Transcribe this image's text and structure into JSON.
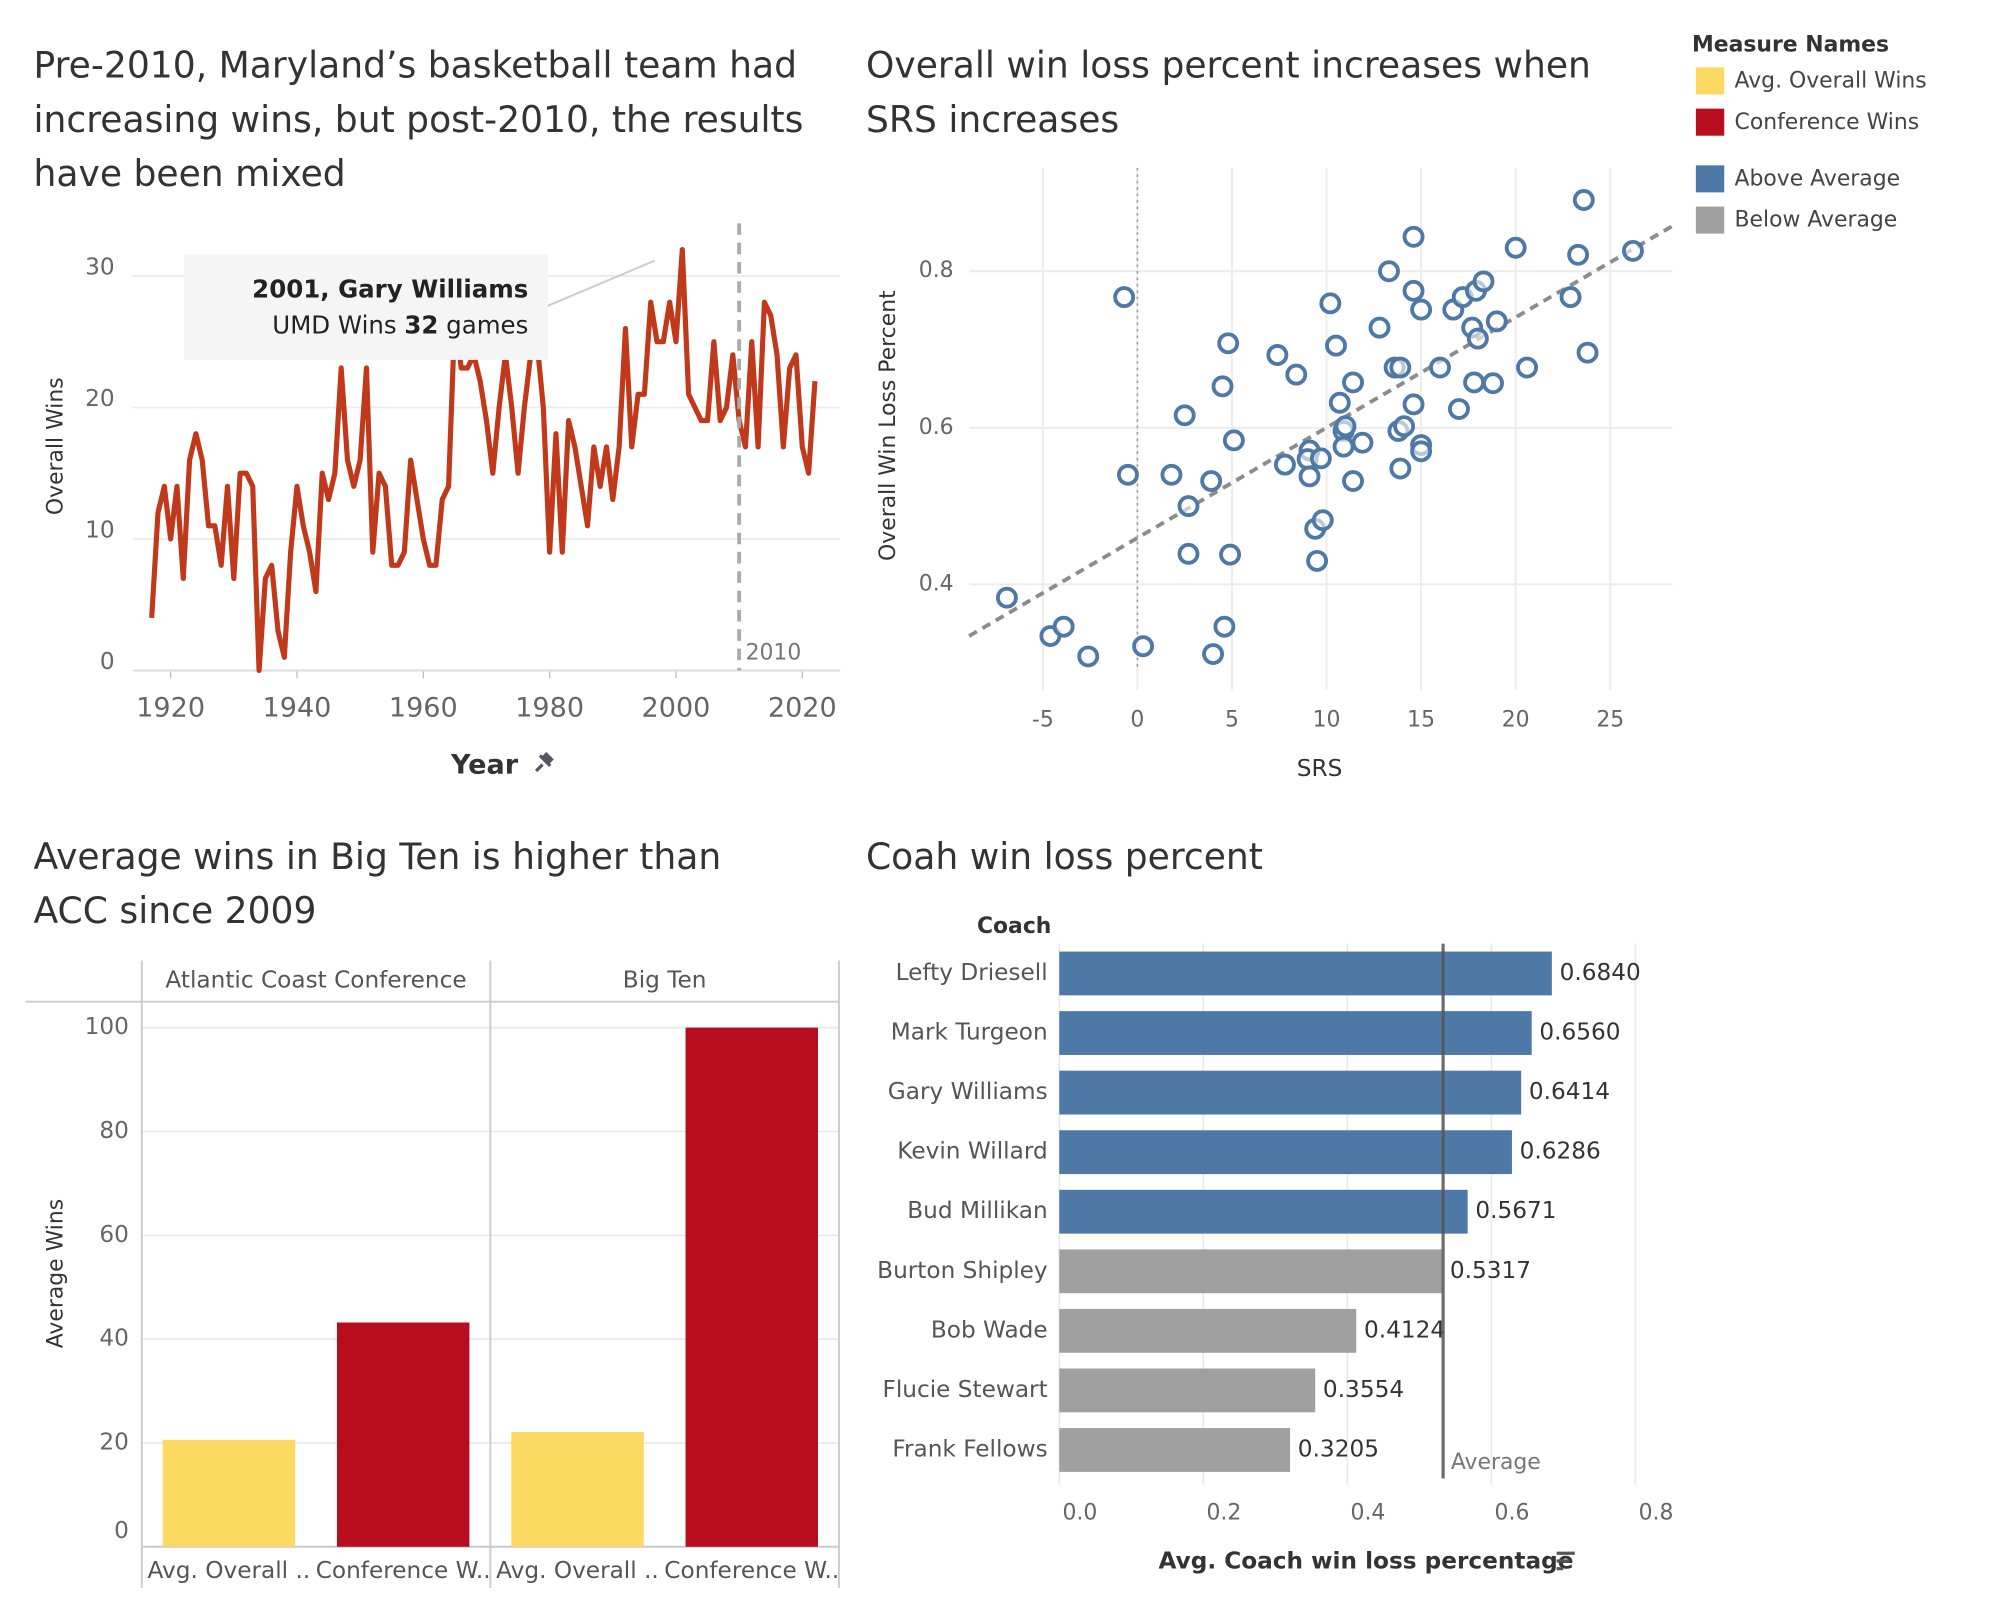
{
  "legend": {
    "title": "Measure Names",
    "items": [
      {
        "name": "Avg. Overall Wins",
        "color": "#fcd963"
      },
      {
        "name": "Conference Wins",
        "color": "#b80c1f"
      },
      {
        "name": "Above Average",
        "color": "#4e79a7"
      },
      {
        "name": "Below Average",
        "color": "#a0a0a0"
      }
    ]
  },
  "chart_data": [
    {
      "type": "line",
      "title": "Pre-2010, Maryland’s basketball team had increasing wins, but post-2010, the results have been mixed",
      "x_label": "Year",
      "y_label": "Overall Wins",
      "color": "#c0391b",
      "x": [
        1917,
        1918,
        1919,
        1920,
        1921,
        1922,
        1923,
        1924,
        1925,
        1926,
        1927,
        1928,
        1929,
        1930,
        1931,
        1932,
        1933,
        1934,
        1935,
        1936,
        1937,
        1938,
        1939,
        1940,
        1941,
        1942,
        1943,
        1944,
        1945,
        1946,
        1947,
        1948,
        1949,
        1950,
        1951,
        1952,
        1953,
        1954,
        1955,
        1956,
        1957,
        1958,
        1959,
        1960,
        1961,
        1962,
        1963,
        1964,
        1965,
        1966,
        1967,
        1968,
        1969,
        1970,
        1971,
        1972,
        1973,
        1974,
        1975,
        1976,
        1977,
        1978,
        1979,
        1980,
        1981,
        1982,
        1983,
        1984,
        1985,
        1986,
        1987,
        1988,
        1989,
        1990,
        1991,
        1992,
        1993,
        1994,
        1995,
        1996,
        1997,
        1998,
        1999,
        2000,
        2001,
        2002,
        2003,
        2004,
        2005,
        2006,
        2007,
        2008,
        2009,
        2010,
        2011,
        2012,
        2013,
        2014,
        2015,
        2016,
        2017,
        2018,
        2019,
        2020,
        2021,
        2022
      ],
      "values": [
        4,
        12,
        14,
        10,
        14,
        7,
        16,
        18,
        16,
        11,
        11,
        8,
        14,
        7,
        15,
        15,
        14,
        0,
        7,
        8,
        3,
        1,
        9,
        14,
        11,
        9,
        6,
        15,
        13,
        15,
        23,
        16,
        14,
        16,
        23,
        9,
        15,
        14,
        8,
        8,
        9,
        16,
        13,
        10,
        8,
        8,
        13,
        14,
        27,
        23,
        23,
        24,
        22,
        19,
        15,
        20,
        24,
        20,
        15,
        20,
        24,
        25,
        20,
        9,
        18,
        9,
        19,
        17,
        14,
        11,
        17,
        14,
        17,
        13,
        17,
        26,
        17,
        21,
        21,
        28,
        25,
        25,
        28,
        25,
        32,
        21,
        20,
        19,
        19,
        25,
        19,
        20,
        24,
        19,
        17,
        25,
        17,
        28,
        27,
        24,
        17,
        23,
        24,
        17,
        15,
        22
      ],
      "xlim": [
        1914,
        2026
      ],
      "xticks": [
        1920,
        1940,
        1960,
        1980,
        2000,
        2020
      ],
      "ylim": [
        0,
        34
      ],
      "yticks": [
        0,
        10,
        20,
        30
      ],
      "grid": true,
      "reference_line": 2010,
      "annotation": {
        "title": "2001, Gary Williams",
        "lines": [
          "UMD Wins",
          "32",
          "games"
        ]
      }
    },
    {
      "type": "scatter",
      "title": "Overall win loss percent increases when SRS increases",
      "x_label": "SRS",
      "y_label": "Overall Win Loss Percent",
      "color": "#4e79a7",
      "x": [
        -6.9,
        -4.6,
        -3.9,
        -2.6,
        -0.7,
        -0.5,
        0.3,
        1.8,
        2.5,
        2.7,
        2.7,
        3.9,
        4.0,
        4.5,
        4.6,
        4.8,
        4.9,
        5.1,
        7.4,
        7.8,
        8.4,
        9.1,
        9.0,
        9.1,
        9.4,
        9.5,
        9.8,
        9.7,
        10.2,
        10.5,
        10.7,
        10.9,
        11.0,
        10.9,
        11.4,
        11.4,
        11.9,
        12.8,
        13.3,
        13.6,
        13.9,
        13.8,
        14.1,
        13.9,
        14.6,
        14.6,
        14.6,
        15.0,
        15.0,
        15.0,
        16.0,
        16.7,
        17.0,
        17.2,
        17.7,
        17.8,
        17.9,
        18.0,
        18.3,
        18.8,
        19.0,
        20.0,
        20.6,
        22.9,
        23.3,
        23.6,
        23.8,
        26.2
      ],
      "y": [
        0.383,
        0.334,
        0.346,
        0.308,
        0.767,
        0.54,
        0.321,
        0.54,
        0.616,
        0.5,
        0.439,
        0.532,
        0.311,
        0.653,
        0.346,
        0.708,
        0.438,
        0.584,
        0.693,
        0.553,
        0.668,
        0.571,
        0.56,
        0.538,
        0.471,
        0.43,
        0.482,
        0.561,
        0.759,
        0.705,
        0.632,
        0.596,
        0.602,
        0.576,
        0.532,
        0.658,
        0.581,
        0.728,
        0.8,
        0.677,
        0.677,
        0.596,
        0.602,
        0.548,
        0.63,
        0.844,
        0.775,
        0.751,
        0.578,
        0.57,
        0.677,
        0.751,
        0.624,
        0.767,
        0.728,
        0.658,
        0.775,
        0.714,
        0.787,
        0.657,
        0.736,
        0.83,
        0.677,
        0.767,
        0.821,
        0.891,
        0.696,
        0.826
      ],
      "trend_line": {
        "x": [
          -8.9,
          28.3
        ],
        "y": [
          0.334,
          0.858
        ]
      },
      "xlim": [
        -8.9,
        28.3
      ],
      "xticks": [
        -5,
        0,
        5,
        10,
        15,
        20,
        25
      ],
      "ylim": [
        0.29,
        0.932
      ],
      "yticks": [
        0.4,
        0.6,
        0.8
      ],
      "grid": true
    },
    {
      "type": "bar",
      "title": "Average wins in Big Ten is higher than ACC since 2009",
      "y_label": "Average Wins",
      "colors": [
        "#fcd963",
        "#b80c1f"
      ],
      "facets": [
        {
          "name": "Atlantic Coast Conference",
          "categories": [
            "Avg. Overall ..",
            "Conference W.."
          ],
          "values": [
            20.6,
            43.2
          ]
        },
        {
          "name": "Big Ten",
          "categories": [
            "Avg. Overall ..",
            "Conference W.."
          ],
          "values": [
            22.1,
            100
          ]
        }
      ],
      "ylim": [
        0,
        105
      ],
      "yticks": [
        0,
        20,
        40,
        60,
        80,
        100
      ],
      "grid": true
    },
    {
      "type": "barh",
      "title": "Coah win loss percent",
      "category_header": "Coach",
      "x_label": "Avg. Coach win loss percentage",
      "categories": [
        "Lefty Driesell",
        "Mark Turgeon",
        "Gary Williams",
        "Kevin Willard",
        "Bud Millikan",
        "Burton Shipley",
        "Bob Wade",
        "Flucie Stewart",
        "Frank Fellows"
      ],
      "values": [
        0.684,
        0.656,
        0.6414,
        0.6286,
        0.5671,
        0.5317,
        0.4124,
        0.3554,
        0.3205
      ],
      "value_labels": [
        "0.6840",
        "0.6560",
        "0.6414",
        "0.6286",
        "0.5671",
        "0.5317",
        "0.4124",
        "0.3554",
        "0.3205"
      ],
      "colors": [
        "#4e79a7",
        "#4e79a7",
        "#4e79a7",
        "#4e79a7",
        "#4e79a7",
        "#a0a0a0",
        "#a0a0a0",
        "#a0a0a0",
        "#a0a0a0"
      ],
      "reference_line": {
        "value": 0.533,
        "label": "Average"
      },
      "xlim": [
        0,
        0.85
      ],
      "xticks": [
        {
          "value": 0,
          "label": "0.0"
        },
        0.2,
        0.4,
        0.6,
        0.8
      ],
      "grid": true
    }
  ]
}
